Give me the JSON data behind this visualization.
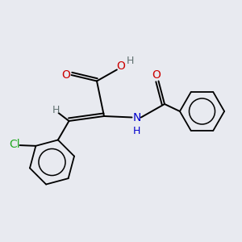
{
  "background_color": "#e8eaf0",
  "black": "#000000",
  "red": "#cc0000",
  "blue": "#0000cc",
  "green": "#22aa22",
  "gray": "#607070",
  "lw": 1.4,
  "ring_lw": 1.3,
  "font_size_atom": 10,
  "font_size_h": 9,
  "xlim": [
    0,
    1
  ],
  "ylim": [
    0,
    1
  ]
}
